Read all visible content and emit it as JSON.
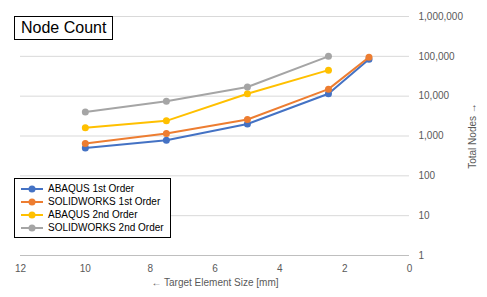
{
  "chart_data": {
    "type": "line",
    "title": "Node Count",
    "x_label": "Target Element Size [mm]",
    "y_label": "Total Nodes",
    "x": [
      10,
      7.5,
      5,
      2.5,
      1.25
    ],
    "series": [
      {
        "name": "ABAQUS 1st Order",
        "color": "#4472c4",
        "values": [
          500,
          780,
          2000,
          11500,
          85000
        ]
      },
      {
        "name": "SOLIDWORKS 1st Order",
        "color": "#ed7d31",
        "values": [
          650,
          1150,
          2600,
          15000,
          95000
        ]
      },
      {
        "name": "ABAQUS 2nd Order",
        "color": "#ffc000",
        "values": [
          1600,
          2400,
          11500,
          45000,
          null
        ]
      },
      {
        "name": "SOLIDWORKS 2nd Order",
        "color": "#a5a5a5",
        "values": [
          4000,
          7500,
          17000,
          100000,
          null
        ]
      }
    ],
    "xlim": [
      12,
      0
    ],
    "xticks": [
      12,
      10,
      8,
      6,
      4,
      2,
      0
    ],
    "ylim": [
      1,
      1000000
    ],
    "yticks": [
      1,
      10,
      100,
      {
        "value": 1000,
        "label": "1,000"
      },
      {
        "value": 10000,
        "label": "10,000"
      },
      {
        "value": 100000,
        "label": "100,000"
      },
      {
        "value": 1000000,
        "label": "1,000,000"
      }
    ],
    "log": "y",
    "grid": true,
    "legend": "bottom-left",
    "marker": "circle"
  }
}
